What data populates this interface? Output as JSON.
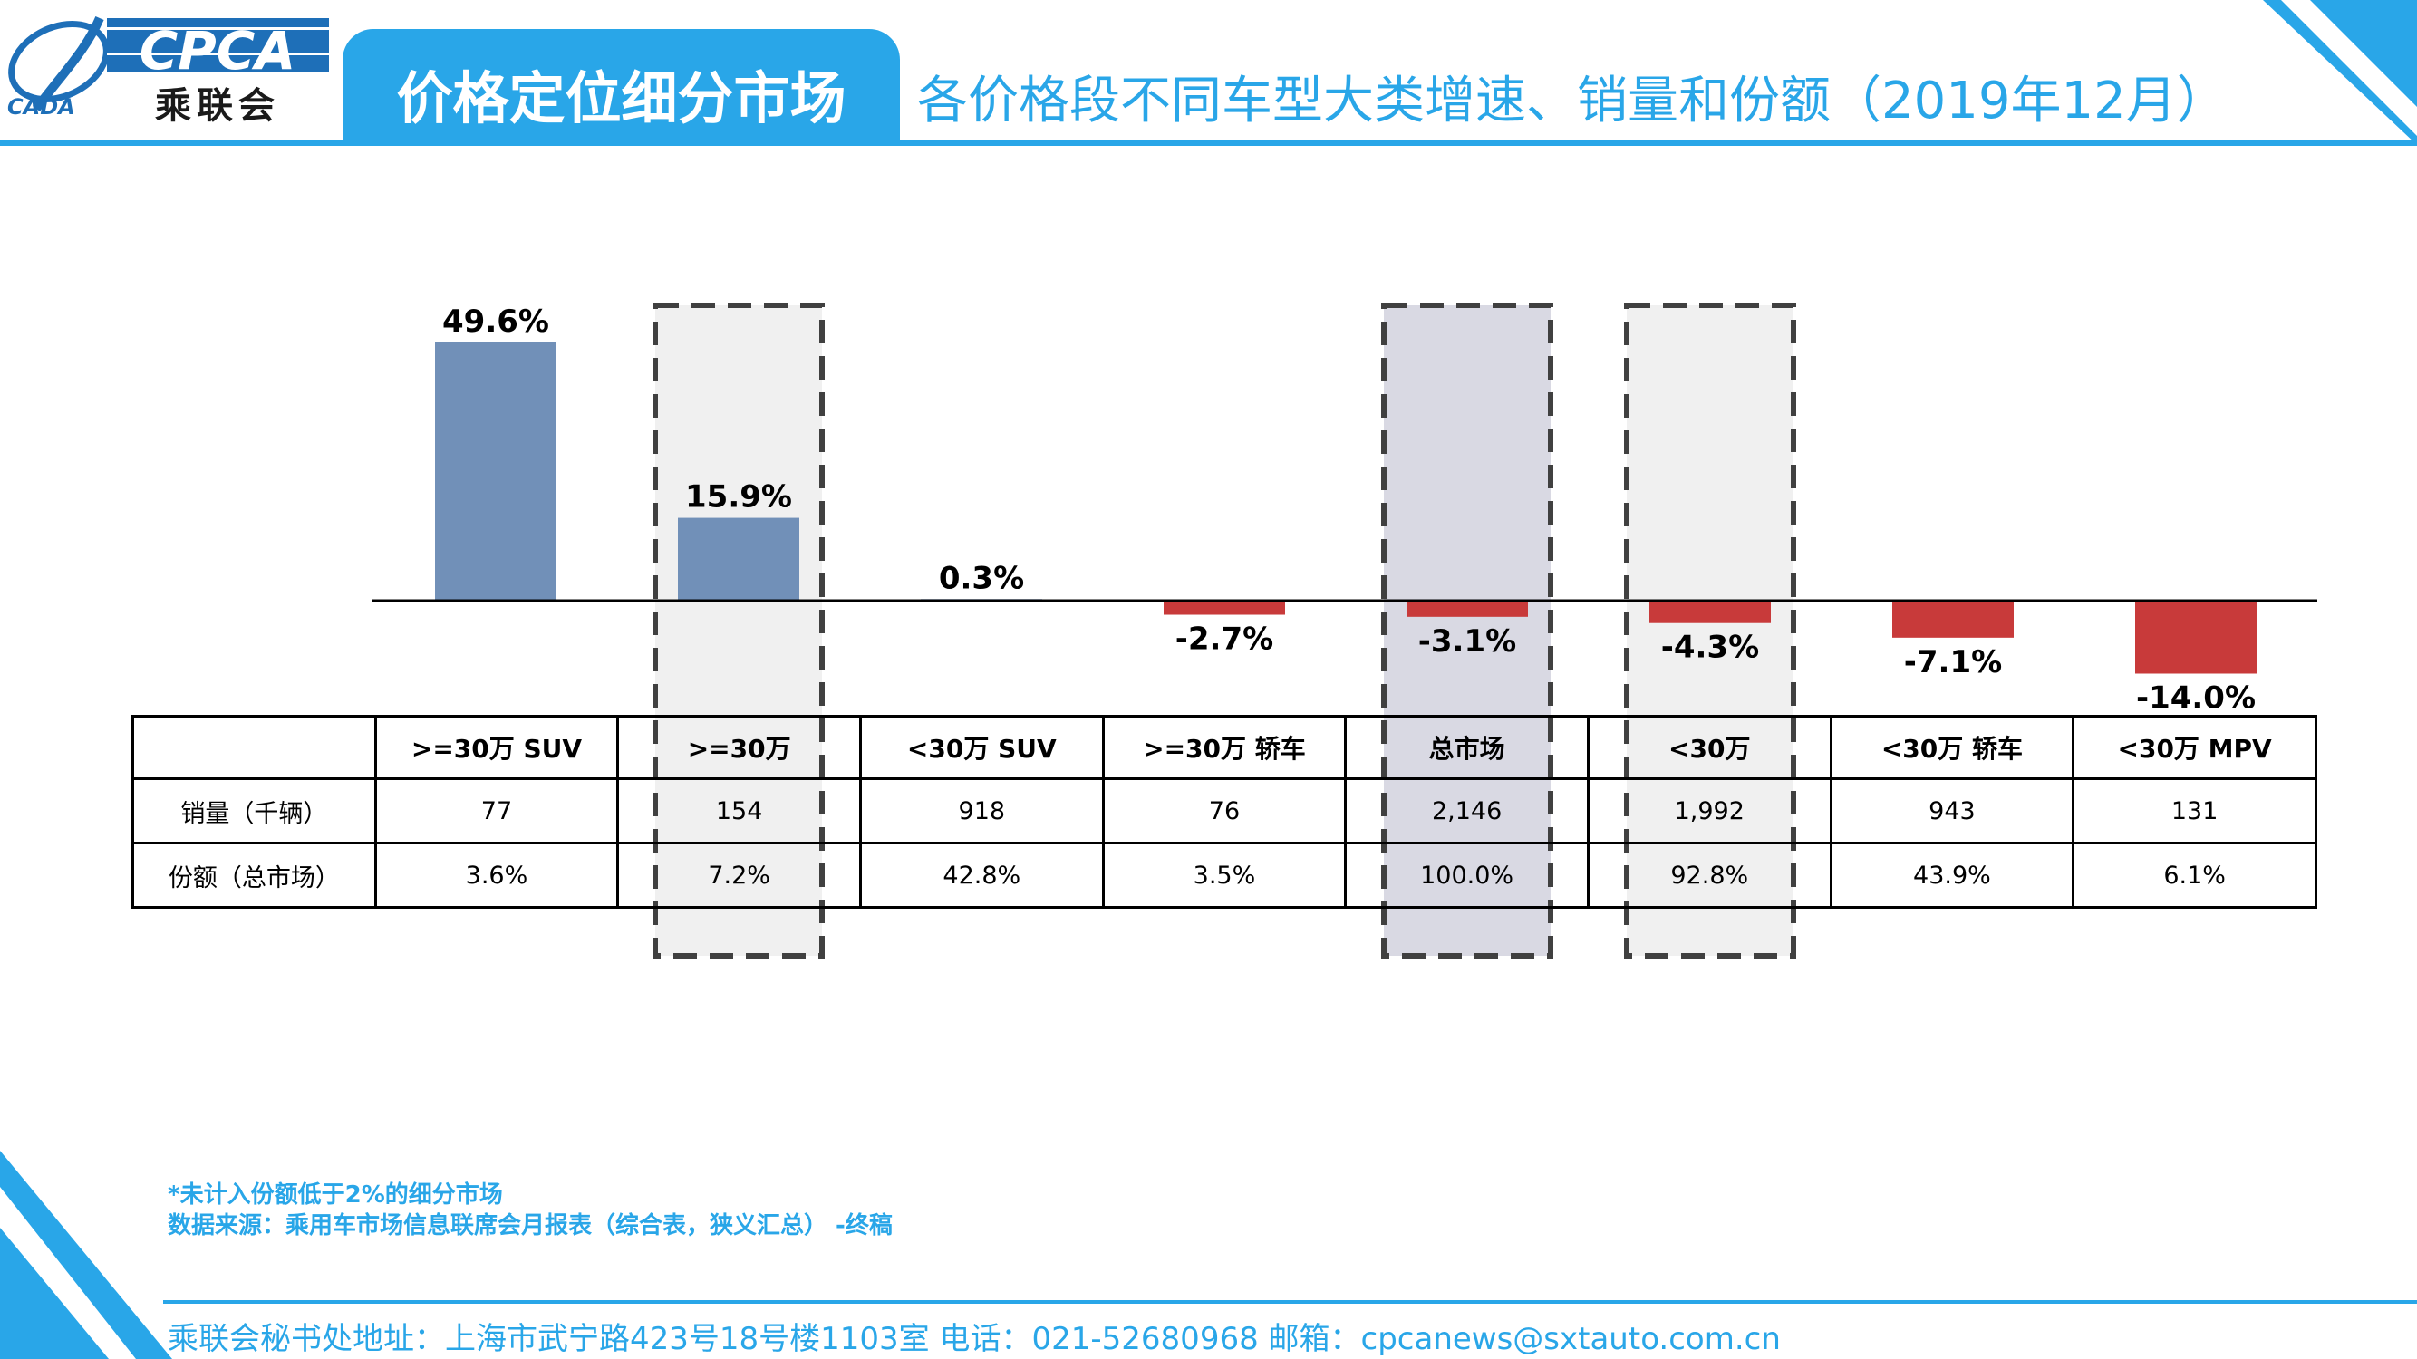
{
  "header": {
    "logo_text": "CPCA",
    "logo_cn": "乘联会",
    "section_title": "价格定位细分市场",
    "page_title": "各价格段不同车型大类增速、销量和份额（2019年12月）"
  },
  "colors": {
    "accent": "#29a6e8",
    "positive": "#7190b8",
    "negative": "#c83a3a",
    "highlight_fill": "#d9d9e3",
    "highlight_light": "#f0f0f0"
  },
  "chart_data": {
    "type": "bar",
    "categories": [
      ">=30万 SUV",
      ">=30万",
      "<30万 SUV",
      ">=30万 轿车",
      "总市场",
      "<30万",
      "<30万 轿车",
      "<30万 MPV"
    ],
    "values": [
      49.6,
      15.9,
      0.3,
      -2.7,
      -3.1,
      -4.3,
      -7.1,
      -14.0
    ],
    "value_labels": [
      "49.6%",
      "15.9%",
      "0.3%",
      "-2.7%",
      "-3.1%",
      "-4.3%",
      "-7.1%",
      "-14.0%"
    ],
    "highlighted_categories": [
      ">=30万",
      "总市场",
      "<30万"
    ],
    "ylim": [
      -14.0,
      49.6
    ],
    "grid": false,
    "legend": "none"
  },
  "table": {
    "header_blank": "",
    "rows": [
      {
        "label": "销量（千辆）",
        "cells": [
          "77",
          "154",
          "918",
          "76",
          "2,146",
          "1,992",
          "943",
          "131"
        ]
      },
      {
        "label": "份额（总市场）",
        "cells": [
          "3.6%",
          "7.2%",
          "42.8%",
          "3.5%",
          "100.0%",
          "92.8%",
          "43.9%",
          "6.1%"
        ]
      }
    ]
  },
  "notes": {
    "line1": "*未计入份额低于2%的细分市场",
    "line2": "数据来源：乘用车市场信息联席会月报表（综合表，狭义汇总） -终稿"
  },
  "footer": {
    "contact": "乘联会秘书处地址：上海市武宁路423号18号楼1103室  电话：021-52680968   邮箱：cpcanews@sxtauto.com.cn"
  }
}
